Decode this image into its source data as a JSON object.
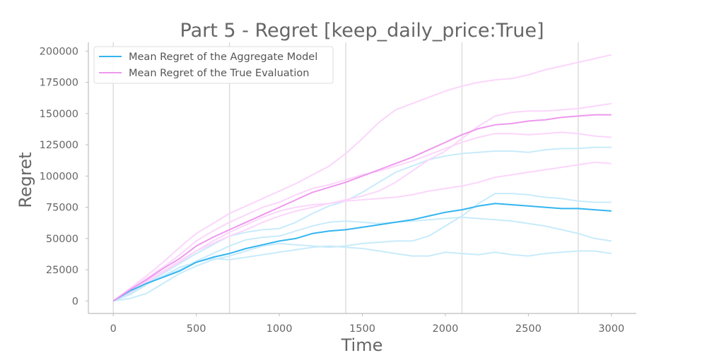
{
  "chart_data": {
    "type": "line",
    "title": "Part 5 - Regret [keep_daily_price:True]",
    "xlabel": "Time",
    "ylabel": "Regret",
    "xlim": [
      -150,
      3150
    ],
    "ylim": [
      -10000,
      207000
    ],
    "xticks": [
      0,
      500,
      1000,
      1500,
      2000,
      2500,
      3000
    ],
    "xtick_labels": [
      "0",
      "500",
      "1000",
      "1500",
      "2000",
      "2500",
      "3000"
    ],
    "yticks": [
      0,
      25000,
      50000,
      75000,
      100000,
      125000,
      150000,
      175000,
      200000
    ],
    "ytick_labels": [
      "0",
      "25000",
      "50000",
      "75000",
      "100000",
      "125000",
      "150000",
      "175000",
      "200000"
    ],
    "vertical_gridlines_x": [
      0,
      700,
      1400,
      2100,
      2800
    ],
    "grid": "vertical",
    "legend_position": "top-left",
    "x": [
      0,
      100,
      200,
      300,
      400,
      500,
      600,
      700,
      800,
      900,
      1000,
      1100,
      1200,
      1300,
      1400,
      1500,
      1600,
      1700,
      1800,
      1900,
      2000,
      2100,
      2200,
      2300,
      2400,
      2500,
      2600,
      2700,
      2800,
      2900,
      3000
    ],
    "series": [
      {
        "name": "Mean Regret of the Aggregate Model",
        "color": "#33b5f0",
        "values": [
          0,
          8000,
          14000,
          19000,
          24000,
          31000,
          35000,
          38000,
          42000,
          45000,
          48000,
          50000,
          54000,
          56000,
          57000,
          59000,
          61000,
          63000,
          65000,
          68000,
          71000,
          73000,
          76000,
          78000,
          77000,
          76000,
          75000,
          74000,
          74000,
          73000,
          72000
        ]
      },
      {
        "name": "Mean Regret of the True Evaluation",
        "color": "#ee98ee",
        "values": [
          0,
          9000,
          17000,
          26000,
          34000,
          44000,
          51000,
          57000,
          63000,
          69000,
          75000,
          81000,
          87000,
          91000,
          95000,
          100000,
          105000,
          110000,
          115000,
          121000,
          127000,
          133000,
          138000,
          141000,
          142000,
          144000,
          145000,
          147000,
          148000,
          149000,
          149000
        ]
      }
    ],
    "background_runs": [
      {
        "color": "#c8ebfb",
        "values": [
          0,
          6000,
          14000,
          22000,
          30000,
          38000,
          45000,
          52000,
          55000,
          57000,
          58000,
          63000,
          70000,
          76000,
          80000,
          87000,
          95000,
          103000,
          108000,
          113000,
          116000,
          118000,
          119000,
          120000,
          120000,
          119000,
          121000,
          122000,
          122000,
          123000,
          123000
        ]
      },
      {
        "color": "#c8ebfb",
        "values": [
          0,
          5000,
          13000,
          20000,
          27000,
          31000,
          34000,
          33000,
          35000,
          37000,
          39000,
          41000,
          43000,
          44000,
          43000,
          42000,
          40000,
          38000,
          36000,
          36000,
          39000,
          38000,
          37000,
          39000,
          37000,
          36000,
          38000,
          39000,
          40000,
          40000,
          38000
        ]
      },
      {
        "color": "#c8ebfb",
        "values": [
          0,
          7000,
          14000,
          20000,
          25000,
          32000,
          38000,
          44000,
          49000,
          51000,
          52000,
          56000,
          60000,
          63000,
          64000,
          63000,
          62000,
          63000,
          64000,
          65000,
          66000,
          67000,
          66000,
          65000,
          64000,
          62000,
          60000,
          57000,
          54000,
          50000,
          48000
        ]
      },
      {
        "color": "#c8ebfb",
        "values": [
          0,
          2000,
          6000,
          14000,
          22000,
          28000,
          33000,
          36000,
          40000,
          44000,
          46000,
          45000,
          44000,
          43000,
          44000,
          46000,
          47000,
          48000,
          48000,
          52000,
          60000,
          68000,
          78000,
          86000,
          86000,
          85000,
          83000,
          82000,
          80000,
          79000,
          79000
        ]
      },
      {
        "color": "#fbd6fb",
        "values": [
          0,
          10000,
          20000,
          31000,
          43000,
          54000,
          62000,
          70000,
          76000,
          82000,
          88000,
          94000,
          101000,
          108000,
          118000,
          130000,
          143000,
          153000,
          158000,
          163000,
          168000,
          172000,
          175000,
          177000,
          178000,
          181000,
          185000,
          188000,
          191000,
          194000,
          197000
        ]
      },
      {
        "color": "#fbd6fb",
        "values": [
          0,
          8000,
          16000,
          24000,
          32000,
          40000,
          46000,
          52000,
          57000,
          63000,
          68000,
          72000,
          75000,
          78000,
          81000,
          84000,
          88000,
          95000,
          104000,
          113000,
          120000,
          130000,
          140000,
          148000,
          151000,
          152000,
          152000,
          153000,
          154000,
          156000,
          158000
        ]
      },
      {
        "color": "#fbd6fb",
        "values": [
          0,
          9000,
          18000,
          27000,
          37000,
          48000,
          56000,
          63000,
          69000,
          75000,
          79000,
          85000,
          90000,
          93000,
          97000,
          101000,
          104000,
          108000,
          112000,
          117000,
          122000,
          127000,
          131000,
          134000,
          134000,
          133000,
          134000,
          135000,
          134000,
          132000,
          131000
        ]
      },
      {
        "color": "#fbd6fb",
        "values": [
          0,
          7000,
          15000,
          23000,
          31000,
          40000,
          48000,
          55000,
          61000,
          67000,
          72000,
          75000,
          77000,
          78000,
          80000,
          81000,
          82000,
          83000,
          85000,
          88000,
          90000,
          92000,
          95000,
          99000,
          101000,
          103000,
          105000,
          107000,
          109000,
          111000,
          110000
        ]
      }
    ]
  }
}
